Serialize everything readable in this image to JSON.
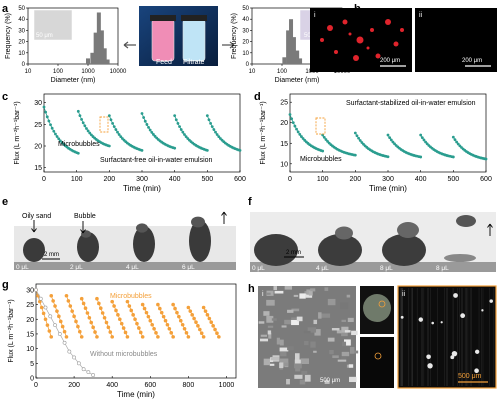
{
  "panels": {
    "a": {
      "letter": "a",
      "left_hist": {
        "xlabel": "Diameter (nm)",
        "ylabel": "Frequency (%)",
        "xticks": [
          "10",
          "100",
          "1000",
          "10000"
        ],
        "yticks": [
          "0",
          "10",
          "20",
          "30",
          "40",
          "50"
        ],
        "scale": "50 μm",
        "bars": [
          {
            "x": 1000,
            "y": 5
          },
          {
            "x": 1400,
            "y": 10
          },
          {
            "x": 1800,
            "y": 28
          },
          {
            "x": 2300,
            "y": 46
          },
          {
            "x": 2900,
            "y": 30
          },
          {
            "x": 3600,
            "y": 14
          },
          {
            "x": 4500,
            "y": 4
          }
        ]
      },
      "right_hist": {
        "xlabel": "Diameter (nm)",
        "ylabel": "Frequency (%)",
        "xticks": [
          "10",
          "100",
          "1000",
          "10000"
        ],
        "yticks": [
          "0",
          "10",
          "20",
          "30",
          "40",
          "50"
        ],
        "scale": "50 μm",
        "bars": [
          {
            "x": 120,
            "y": 6
          },
          {
            "x": 160,
            "y": 30
          },
          {
            "x": 200,
            "y": 40
          },
          {
            "x": 250,
            "y": 24
          },
          {
            "x": 320,
            "y": 12
          },
          {
            "x": 400,
            "y": 5
          }
        ]
      },
      "vials": {
        "feed": "Feed",
        "filtrate": "Filtrate"
      }
    },
    "b": {
      "letter": "b",
      "i": "i",
      "ii": "ii",
      "scale_i": "200 μm",
      "scale_ii": "200 μm"
    },
    "c": {
      "letter": "c",
      "xlabel": "Time (min)",
      "ylabel": "Flux (L m⁻²h⁻¹bar⁻¹)",
      "xticks": [
        "0",
        "100",
        "200",
        "300",
        "400",
        "500",
        "600"
      ],
      "yticks": [
        "15",
        "20",
        "25",
        "30"
      ],
      "annotation": "Microbubbles",
      "caption": "Surfactant-free oil-in-water emulsion",
      "xlim": [
        0,
        600
      ],
      "ylim": [
        14,
        32
      ],
      "cycles": [
        [
          0,
          29,
          105,
          17
        ],
        [
          105,
          28,
          200,
          19
        ],
        [
          200,
          27,
          300,
          18
        ],
        [
          300,
          27.5,
          400,
          18.5
        ],
        [
          400,
          27,
          500,
          18
        ],
        [
          500,
          27,
          600,
          18
        ]
      ]
    },
    "d": {
      "letter": "d",
      "xlabel": "Time (min)",
      "ylabel": "Flux (L m⁻²h⁻¹bar⁻¹)",
      "xticks": [
        "0",
        "100",
        "200",
        "300",
        "400",
        "500",
        "600"
      ],
      "yticks": [
        "10",
        "15",
        "20",
        "25"
      ],
      "annotation": "Microbubbles",
      "caption": "Surfactant-stabilized oil-in-water emulsion",
      "xlim": [
        0,
        600
      ],
      "ylim": [
        8,
        27
      ],
      "cycles": [
        [
          0,
          22,
          100,
          12
        ],
        [
          100,
          17,
          200,
          11.5
        ],
        [
          200,
          17.5,
          300,
          11
        ],
        [
          300,
          17,
          400,
          11
        ],
        [
          400,
          17,
          500,
          11
        ],
        [
          500,
          16.5,
          600,
          10.5
        ]
      ]
    },
    "e": {
      "letter": "e",
      "oily_sand": "Oily sand",
      "bubble": "Bubble",
      "scale": "2 mm",
      "volumes": [
        "0 μL",
        "2 μL",
        "4 μL",
        "6 μL"
      ]
    },
    "f": {
      "letter": "f",
      "scale": "2 mm",
      "volumes": [
        "0 μL",
        "4 μL",
        "8 μL",
        "8 μL"
      ]
    },
    "g": {
      "letter": "g",
      "xlabel": "Time (min)",
      "ylabel": "Flux (L m⁻²h⁻¹bar⁻¹)",
      "xticks": [
        "0",
        "200",
        "400",
        "600",
        "800",
        "1000"
      ],
      "yticks": [
        "0",
        "5",
        "10",
        "15",
        "20",
        "25",
        "30"
      ],
      "series_micro": "Microbubbles",
      "series_without": "Without microbubbles",
      "xlim": [
        0,
        1050
      ],
      "ylim": [
        0,
        32
      ],
      "micro_cycles": [
        [
          0,
          30,
          80,
          14
        ],
        [
          80,
          28,
          160,
          14
        ],
        [
          160,
          28,
          240,
          14
        ],
        [
          240,
          27,
          320,
          14
        ],
        [
          320,
          27,
          400,
          14
        ],
        [
          400,
          26,
          480,
          14
        ],
        [
          480,
          26,
          560,
          14
        ],
        [
          560,
          25,
          640,
          14
        ],
        [
          640,
          25,
          720,
          14
        ],
        [
          720,
          25,
          800,
          14
        ],
        [
          800,
          24,
          880,
          14
        ],
        [
          880,
          24,
          960,
          14
        ]
      ],
      "without": [
        [
          0,
          30
        ],
        [
          25,
          27
        ],
        [
          50,
          24
        ],
        [
          75,
          21
        ],
        [
          100,
          18
        ],
        [
          125,
          15
        ],
        [
          150,
          12
        ],
        [
          175,
          9
        ],
        [
          200,
          7
        ],
        [
          225,
          5
        ],
        [
          250,
          3
        ],
        [
          275,
          2
        ],
        [
          300,
          1
        ]
      ]
    },
    "h": {
      "letter": "h",
      "i": "i",
      "ii": "ii",
      "scale": "500 μm"
    }
  },
  "colors": {
    "teal": "#2a9d8f",
    "orange": "#f4a03a",
    "gray": "#9a9a9a",
    "red": "#e0242c"
  }
}
